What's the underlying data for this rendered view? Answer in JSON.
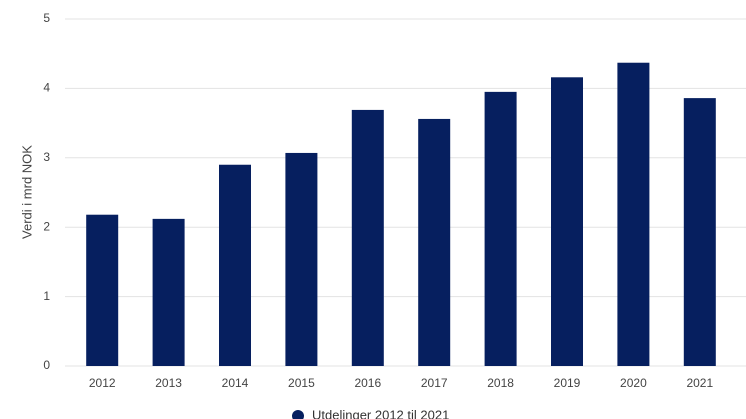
{
  "chart_data": {
    "type": "bar",
    "y_label": "Verdi i mrd NOK",
    "categories": [
      "2012",
      "2013",
      "2014",
      "2015",
      "2016",
      "2017",
      "2018",
      "2019",
      "2020",
      "2021"
    ],
    "series": [
      {
        "name": "Utdelinger 2012 til 2021",
        "color": "#061f5f",
        "values": [
          2.18,
          2.12,
          2.9,
          3.07,
          3.69,
          3.56,
          3.95,
          4.16,
          4.37,
          3.86
        ]
      }
    ],
    "ylim": [
      0,
      5
    ],
    "yticks": [
      0,
      1,
      2,
      3,
      4,
      5
    ],
    "grid": true,
    "legend": "bottom"
  }
}
